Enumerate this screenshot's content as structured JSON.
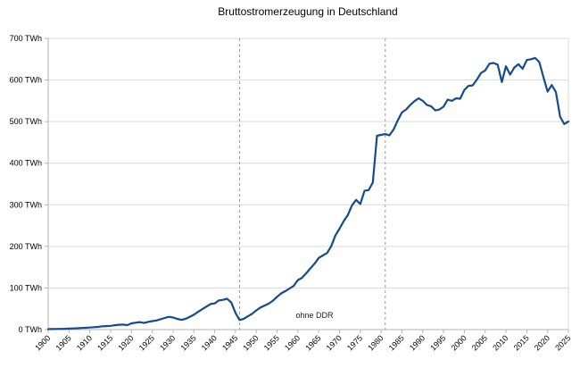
{
  "page": {
    "background": "#ffffff"
  },
  "chart_data": {
    "type": "line",
    "title": "Bruttostromerzeugung in Deutschland",
    "xlabel": "",
    "ylabel": "",
    "xlim": [
      1900,
      2025
    ],
    "ylim": [
      0,
      700
    ],
    "x_tick_step": 5,
    "y_tick_step": 100,
    "grid": "horizontal-only",
    "legend": "none",
    "x_tick_labels": [
      "1900",
      "1905",
      "1910",
      "1915",
      "1920",
      "1925",
      "1930",
      "1935",
      "1940",
      "1945",
      "1950",
      "1955",
      "1960",
      "1965",
      "1970",
      "1975",
      "1980",
      "1985",
      "1990",
      "1995",
      "2000",
      "2005",
      "2010",
      "2015",
      "2020",
      "2025"
    ],
    "y_tick_labels": [
      "0 TWh",
      "100 TWh",
      "200 TWh",
      "300 TWh",
      "400 TWh",
      "500 TWh",
      "600 TWh",
      "700 TWh"
    ],
    "colors": {
      "line": "#154b8d",
      "gridline": "#d9d9d9",
      "axis": "#b3b3b3",
      "reference_line": "#9a9a9a",
      "title_text": "#000000",
      "label_text": "#000000"
    },
    "reference_lines": [
      {
        "year": 1946,
        "style": "dashed"
      },
      {
        "year": 1981,
        "style": "dashed"
      }
    ],
    "annotations": [
      {
        "text": "ohne DDR",
        "x_year": 1964,
        "y_value": 28
      }
    ],
    "series": [
      {
        "name": "Bruttostromerzeugung (TWh)",
        "points": [
          [
            1900,
            1.0
          ],
          [
            1901,
            1.2
          ],
          [
            1902,
            1.4
          ],
          [
            1903,
            1.7
          ],
          [
            1904,
            2.0
          ],
          [
            1905,
            2.4
          ],
          [
            1906,
            2.8
          ],
          [
            1907,
            3.3
          ],
          [
            1908,
            3.8
          ],
          [
            1909,
            4.3
          ],
          [
            1910,
            5.0
          ],
          [
            1911,
            5.7
          ],
          [
            1912,
            6.5
          ],
          [
            1913,
            8.0
          ],
          [
            1914,
            8.3
          ],
          [
            1915,
            9.0
          ],
          [
            1916,
            10.5
          ],
          [
            1917,
            11.7
          ],
          [
            1918,
            12.0
          ],
          [
            1919,
            10.8
          ],
          [
            1920,
            15.0
          ],
          [
            1921,
            16.5
          ],
          [
            1922,
            18.0
          ],
          [
            1923,
            15.8
          ],
          [
            1924,
            18.5
          ],
          [
            1925,
            20.3
          ],
          [
            1926,
            21.8
          ],
          [
            1927,
            25.0
          ],
          [
            1928,
            27.9
          ],
          [
            1929,
            30.7
          ],
          [
            1930,
            29.1
          ],
          [
            1931,
            25.8
          ],
          [
            1932,
            23.5
          ],
          [
            1933,
            25.7
          ],
          [
            1934,
            30.7
          ],
          [
            1935,
            35.7
          ],
          [
            1936,
            42.5
          ],
          [
            1937,
            49.0
          ],
          [
            1938,
            55.2
          ],
          [
            1939,
            61.4
          ],
          [
            1940,
            63.0
          ],
          [
            1941,
            70.0
          ],
          [
            1942,
            71.5
          ],
          [
            1943,
            74.0
          ],
          [
            1944,
            65.0
          ],
          [
            1945,
            40.0
          ],
          [
            1946,
            23.0
          ],
          [
            1947,
            26.0
          ],
          [
            1948,
            32.0
          ],
          [
            1949,
            38.0
          ],
          [
            1950,
            46.1
          ],
          [
            1951,
            53.1
          ],
          [
            1952,
            57.8
          ],
          [
            1953,
            62.4
          ],
          [
            1954,
            69.5
          ],
          [
            1955,
            78.9
          ],
          [
            1956,
            87.2
          ],
          [
            1957,
            92.6
          ],
          [
            1958,
            98.8
          ],
          [
            1959,
            105.4
          ],
          [
            1960,
            119.0
          ],
          [
            1961,
            124.6
          ],
          [
            1962,
            135.4
          ],
          [
            1963,
            147.1
          ],
          [
            1964,
            158.5
          ],
          [
            1965,
            172.3
          ],
          [
            1966,
            178.2
          ],
          [
            1967,
            184.1
          ],
          [
            1968,
            200.3
          ],
          [
            1969,
            226.1
          ],
          [
            1970,
            242.6
          ],
          [
            1971,
            260.2
          ],
          [
            1972,
            275.3
          ],
          [
            1973,
            299.0
          ],
          [
            1974,
            311.7
          ],
          [
            1975,
            301.8
          ],
          [
            1976,
            333.7
          ],
          [
            1977,
            335.5
          ],
          [
            1978,
            353.4
          ],
          [
            1979,
            466.0
          ],
          [
            1980,
            468.0
          ],
          [
            1981,
            470.0
          ],
          [
            1982,
            467.0
          ],
          [
            1983,
            481.0
          ],
          [
            1984,
            503.0
          ],
          [
            1985,
            522.0
          ],
          [
            1986,
            529.0
          ],
          [
            1987,
            540.0
          ],
          [
            1988,
            549.0
          ],
          [
            1989,
            556.0
          ],
          [
            1990,
            550.0
          ],
          [
            1991,
            540.0
          ],
          [
            1992,
            537.0
          ],
          [
            1993,
            527.0
          ],
          [
            1994,
            529.0
          ],
          [
            1995,
            536.0
          ],
          [
            1996,
            553.0
          ],
          [
            1997,
            550.0
          ],
          [
            1998,
            556.0
          ],
          [
            1999,
            555.0
          ],
          [
            2000,
            576.0
          ],
          [
            2001,
            586.0
          ],
          [
            2002,
            587.0
          ],
          [
            2003,
            601.0
          ],
          [
            2004,
            617.0
          ],
          [
            2005,
            623.0
          ],
          [
            2006,
            639.0
          ],
          [
            2007,
            641.0
          ],
          [
            2008,
            637.0
          ],
          [
            2009,
            595.0
          ],
          [
            2010,
            633.0
          ],
          [
            2011,
            613.0
          ],
          [
            2012,
            630.0
          ],
          [
            2013,
            638.0
          ],
          [
            2014,
            627.0
          ],
          [
            2015,
            648.0
          ],
          [
            2016,
            650.0
          ],
          [
            2017,
            653.0
          ],
          [
            2018,
            643.0
          ],
          [
            2019,
            607.0
          ],
          [
            2020,
            572.0
          ],
          [
            2021,
            588.0
          ],
          [
            2022,
            571.0
          ],
          [
            2023,
            512.0
          ],
          [
            2024,
            494.0
          ],
          [
            2025,
            500.0
          ]
        ]
      }
    ]
  }
}
